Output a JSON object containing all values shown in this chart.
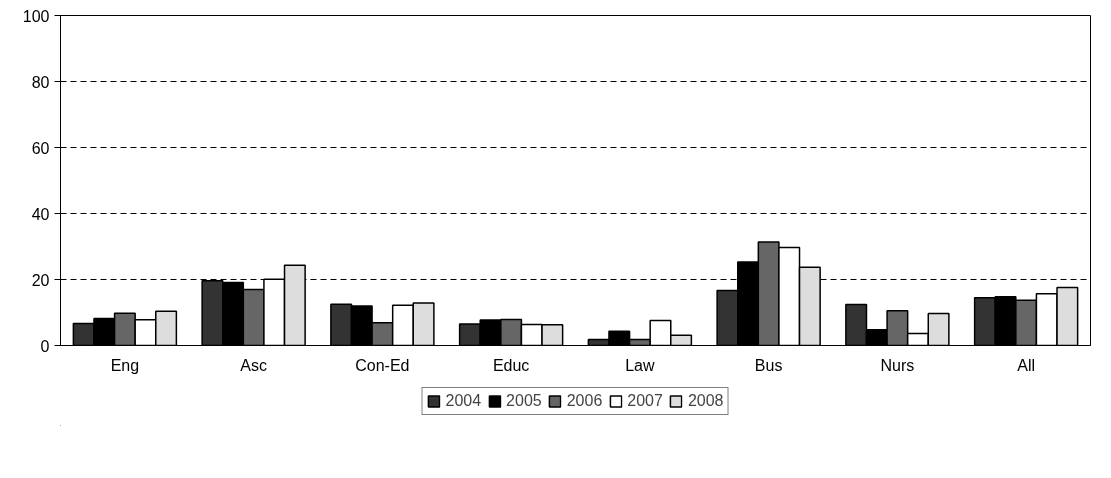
{
  "chart_data": {
    "type": "bar",
    "categories": [
      "Eng",
      "Asc",
      "Con-Ed",
      "Educ",
      "Law",
      "Bus",
      "Nurs",
      "All"
    ],
    "series": [
      {
        "name": "2004",
        "color": "#333333",
        "values": [
          6.7,
          19.6,
          12.5,
          6.5,
          1.8,
          16.7,
          12.4,
          14.5
        ]
      },
      {
        "name": "2005",
        "color": "#000000",
        "values": [
          8.2,
          19.1,
          12.0,
          7.7,
          4.3,
          25.3,
          4.8,
          14.8
        ]
      },
      {
        "name": "2006",
        "color": "#666666",
        "values": [
          9.8,
          17.0,
          6.9,
          7.9,
          1.8,
          31.4,
          10.5,
          13.7
        ]
      },
      {
        "name": "2007",
        "color": "#ffffff",
        "values": [
          7.8,
          20.1,
          12.2,
          6.4,
          7.6,
          29.7,
          3.6,
          15.7
        ]
      },
      {
        "name": "2008",
        "color": "#dddddd",
        "values": [
          10.4,
          24.3,
          12.9,
          6.3,
          3.1,
          23.7,
          9.7,
          17.6
        ]
      }
    ],
    "ylim": [
      0,
      100
    ],
    "yticks": [
      0,
      20,
      40,
      60,
      80,
      100
    ],
    "grid": "y",
    "legend": "bottom"
  }
}
